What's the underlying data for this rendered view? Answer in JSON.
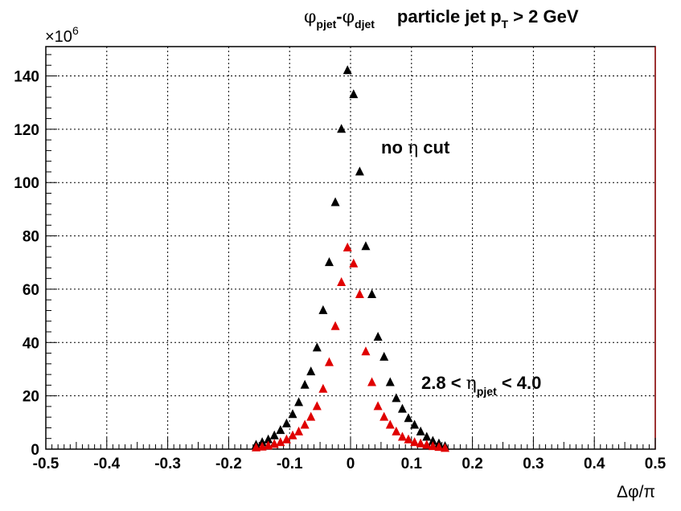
{
  "chart_data": {
    "type": "scatter",
    "title": {
      "phi1": "φ",
      "sub1": "pjet",
      "dash": "-",
      "phi2": "φ",
      "sub2": "djet",
      "text": "particle jet p",
      "sub3": "T",
      "tail": " > 2 GeV"
    },
    "xlabel": "Δφ/π",
    "y_exponent": {
      "base": "×10",
      "exp": "6"
    },
    "xlim": [
      -0.5,
      0.5
    ],
    "ylim": [
      0,
      151
    ],
    "x_ticks": [
      -0.5,
      -0.4,
      -0.3,
      -0.2,
      -0.1,
      0,
      0.1,
      0.2,
      0.3,
      0.4,
      0.5
    ],
    "x_tick_labels": [
      "-0.5",
      "-0.4",
      "-0.3",
      "-0.2",
      "-0.1",
      "0",
      "0.1",
      "0.2",
      "0.3",
      "0.4",
      "0.5"
    ],
    "y_ticks": [
      0,
      20,
      40,
      60,
      80,
      100,
      120,
      140
    ],
    "y_tick_labels": [
      "0",
      "20",
      "40",
      "60",
      "80",
      "100",
      "120",
      "140"
    ],
    "grid": true,
    "annotations": {
      "no_cut": {
        "pre": "no ",
        "eta": "η",
        "post": " cut"
      },
      "eta_range": {
        "pre": "2.8 < ",
        "eta": "η",
        "sub": "pjet",
        "post": " < 4.0"
      }
    },
    "series": [
      {
        "color": "#000000",
        "marker": "triangle-up",
        "x": [
          -0.155,
          -0.145,
          -0.135,
          -0.125,
          -0.115,
          -0.105,
          -0.095,
          -0.085,
          -0.075,
          -0.065,
          -0.055,
          -0.045,
          -0.035,
          -0.025,
          -0.015,
          -0.005,
          0.005,
          0.015,
          0.025,
          0.035,
          0.045,
          0.055,
          0.065,
          0.075,
          0.085,
          0.095,
          0.105,
          0.115,
          0.125,
          0.135,
          0.145,
          0.155
        ],
        "y": [
          1.5,
          2.5,
          3.5,
          5,
          7,
          9.5,
          13,
          17.5,
          24,
          29,
          38,
          52,
          70,
          92.5,
          120,
          142,
          133,
          104,
          76,
          58,
          42,
          34.5,
          25,
          19,
          15,
          11.5,
          9,
          6.5,
          4.5,
          3,
          2,
          1
        ]
      },
      {
        "color": "#e00000",
        "marker": "triangle-up",
        "x": [
          -0.155,
          -0.145,
          -0.135,
          -0.125,
          -0.115,
          -0.105,
          -0.095,
          -0.085,
          -0.075,
          -0.065,
          -0.055,
          -0.045,
          -0.035,
          -0.025,
          -0.015,
          -0.005,
          0.005,
          0.015,
          0.025,
          0.035,
          0.045,
          0.055,
          0.065,
          0.075,
          0.085,
          0.095,
          0.105,
          0.115,
          0.125,
          0.135,
          0.145,
          0.155
        ],
        "y": [
          0.5,
          0.8,
          1.2,
          1.8,
          2.5,
          3.5,
          5,
          6.5,
          9,
          12,
          16,
          22.5,
          32.5,
          46,
          62.5,
          75.5,
          69.5,
          58,
          36.5,
          25,
          16,
          12,
          9,
          6.5,
          4.5,
          3.5,
          2.5,
          2,
          1.5,
          1,
          0.7,
          0.3
        ]
      }
    ]
  }
}
